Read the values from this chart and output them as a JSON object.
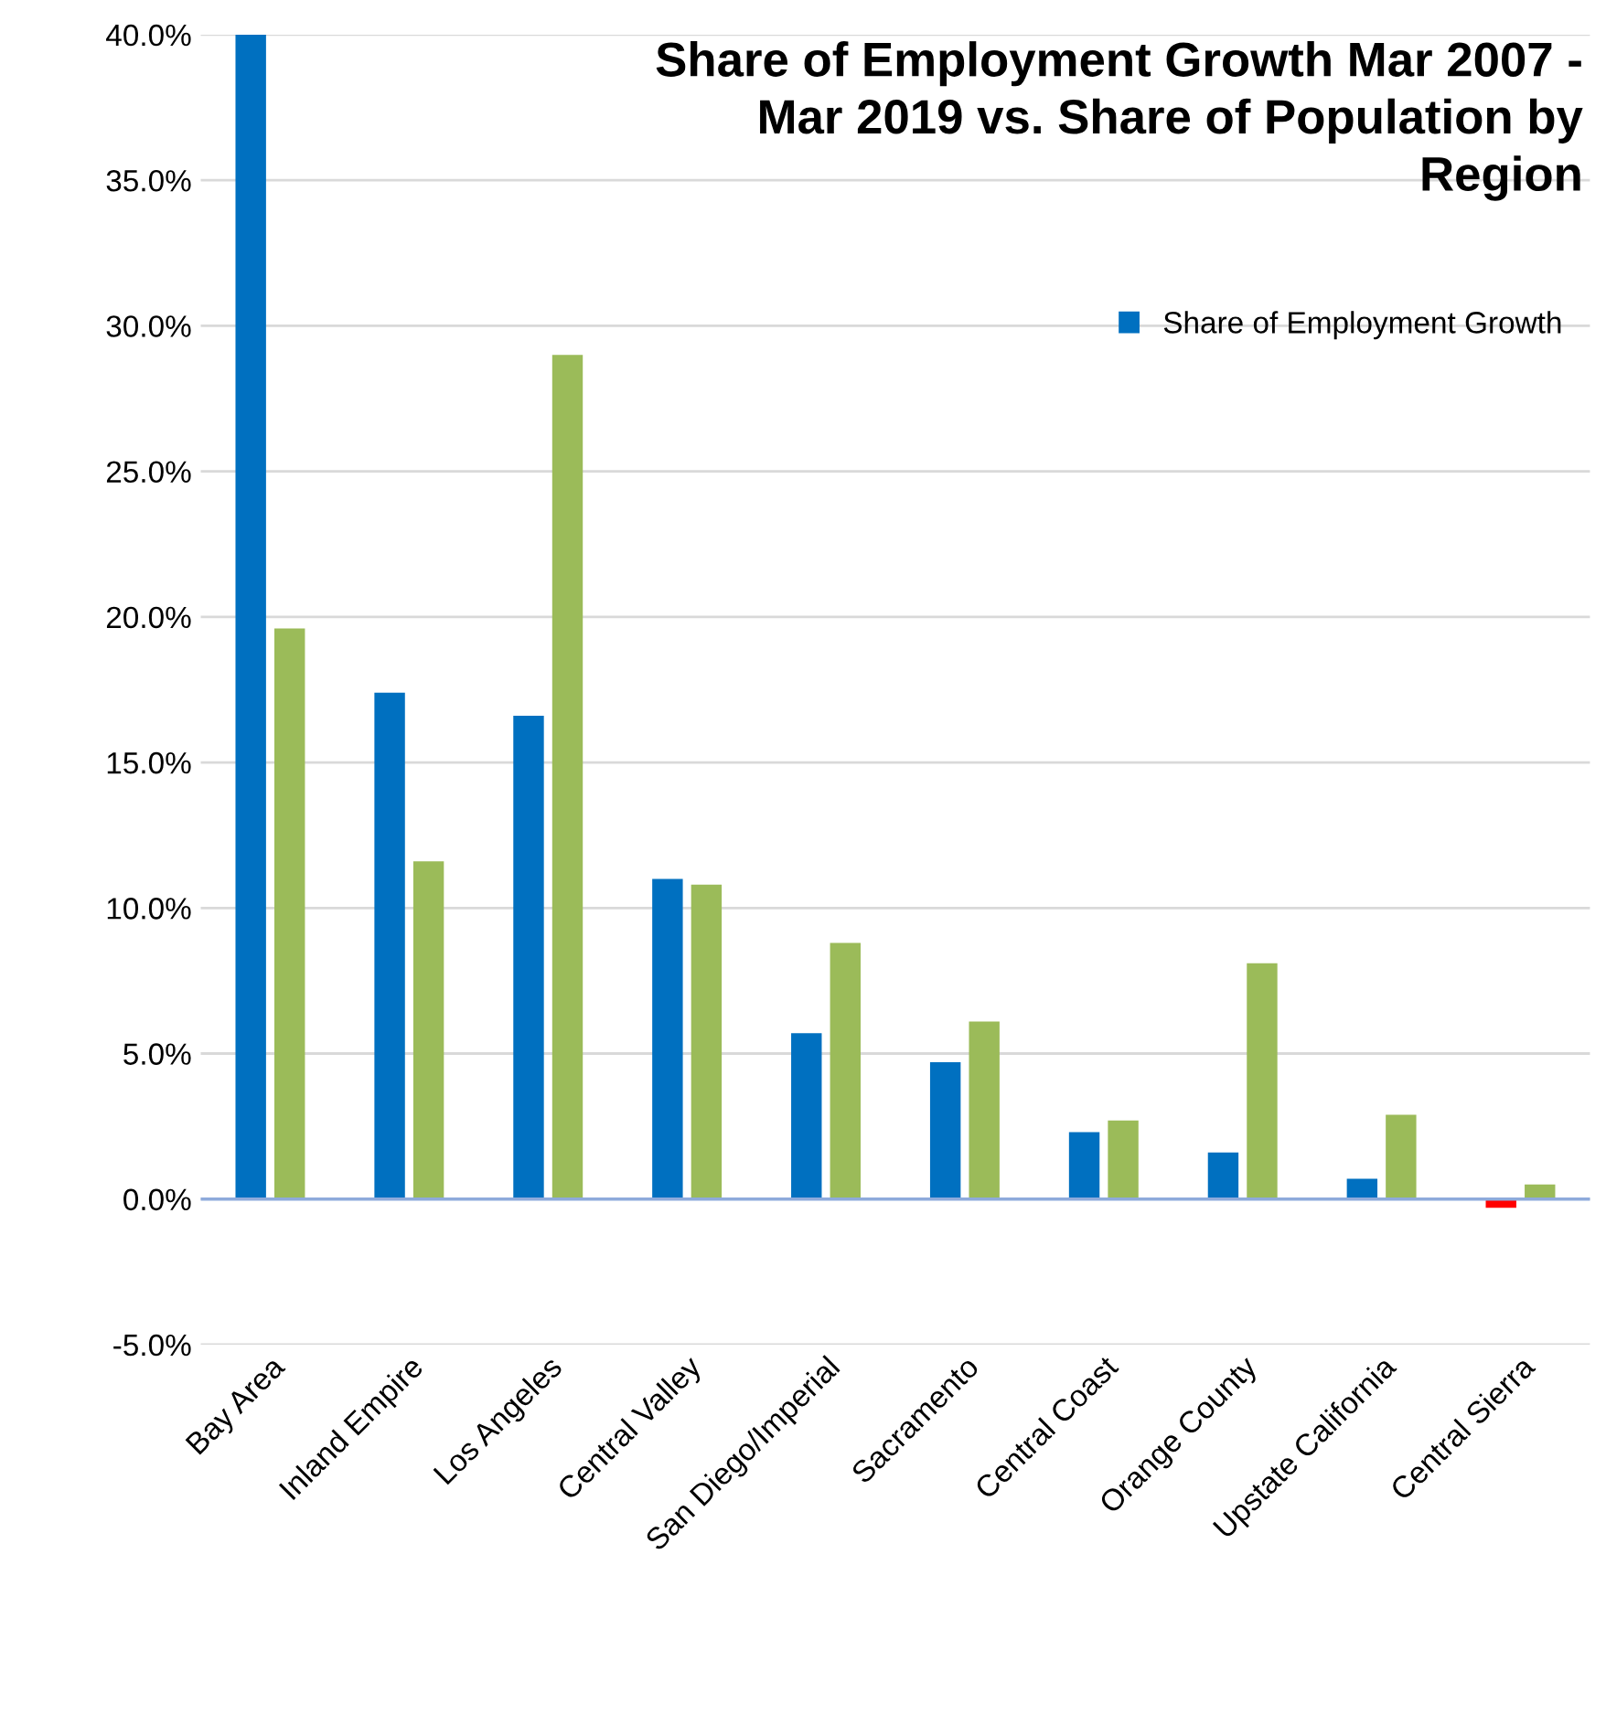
{
  "chart_data": {
    "type": "bar",
    "title": "Share of Employment Growth Mar 2007 -\nMar 2019 vs. Share of Population by\nRegion",
    "categories": [
      "Bay Area",
      "Inland Empire",
      "Los Angeles",
      "Central Valley",
      "San Diego/Imperial",
      "Sacramento",
      "Central Coast",
      "Orange County",
      "Upstate California",
      "Central Sierra"
    ],
    "series": [
      {
        "name": "Share of Employment Growth",
        "color": "#0070c0",
        "colors": [
          "#0070c0",
          "#0070c0",
          "#0070c0",
          "#0070c0",
          "#0070c0",
          "#0070c0",
          "#0070c0",
          "#0070c0",
          "#0070c0",
          "#ff0000"
        ],
        "values": [
          40.0,
          17.4,
          16.6,
          11.0,
          5.7,
          4.7,
          2.3,
          1.6,
          0.7,
          -0.3
        ]
      },
      {
        "color": "#9bbb59",
        "values": [
          19.6,
          11.6,
          29.0,
          10.8,
          8.8,
          6.1,
          2.7,
          8.1,
          2.9,
          0.5
        ]
      }
    ],
    "ylim": [
      -5,
      40
    ],
    "yticks": [
      {
        "value": -5,
        "label": "-5.0%"
      },
      {
        "value": 0,
        "label": "0.0%"
      },
      {
        "value": 5,
        "label": "5.0%"
      },
      {
        "value": 10,
        "label": "10.0%"
      },
      {
        "value": 15,
        "label": "15.0%"
      },
      {
        "value": 20,
        "label": "20.0%"
      },
      {
        "value": 25,
        "label": "25.0%"
      },
      {
        "value": 30,
        "label": "30.0%"
      },
      {
        "value": 35,
        "label": "35.0%"
      },
      {
        "value": 40,
        "label": "40.0%"
      }
    ],
    "grid": "y",
    "legend": "top right",
    "ref_lines": [
      {
        "axis": "y",
        "value": 0,
        "color": "#8eaadb"
      }
    ]
  }
}
